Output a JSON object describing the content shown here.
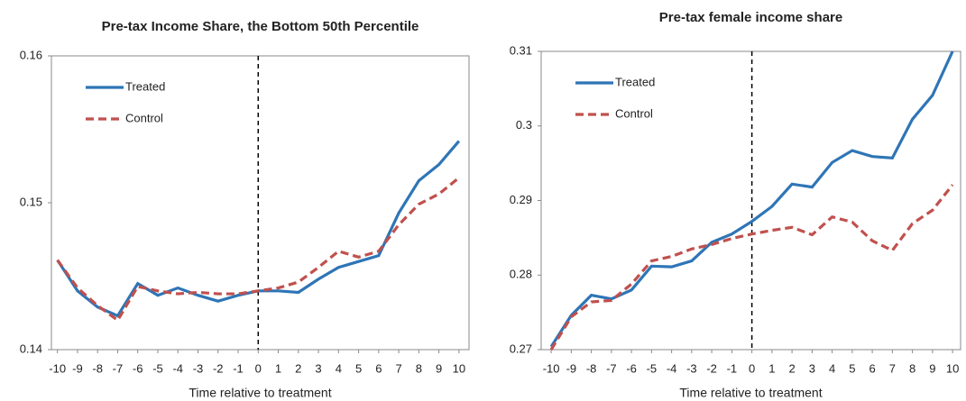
{
  "chart_data": [
    {
      "type": "line",
      "title": "Pre-tax Income Share, the Bottom 50th Percentile",
      "x_label": "Time relative to treatment",
      "x": [
        -10,
        -9,
        -8,
        -7,
        -6,
        -5,
        -4,
        -3,
        -2,
        -1,
        0,
        1,
        2,
        3,
        4,
        5,
        6,
        7,
        8,
        9,
        10
      ],
      "xlim": [
        -10.3,
        10.5
      ],
      "xticks": [
        -10,
        -9,
        -8,
        -7,
        -6,
        -5,
        -4,
        -3,
        -2,
        -1,
        0,
        1,
        2,
        3,
        4,
        5,
        6,
        7,
        8,
        9,
        10
      ],
      "ylim": [
        0.14,
        0.16
      ],
      "yticks": [
        0.14,
        0.15,
        0.16
      ],
      "vline": 0,
      "legend": "upper left",
      "series": [
        {
          "name": "Treated",
          "color": "#2e75b6",
          "values": [
            0.1461,
            0.144,
            0.1429,
            0.1423,
            0.1445,
            0.1437,
            0.1442,
            0.1437,
            0.1433,
            0.1437,
            0.144,
            0.144,
            0.1439,
            0.1448,
            0.1456,
            0.146,
            0.1464,
            0.1493,
            0.1515,
            0.1526,
            0.1542
          ]
        },
        {
          "name": "Control",
          "color": "#c0504d",
          "dashed": true,
          "values": [
            0.1461,
            0.1442,
            0.143,
            0.142,
            0.1443,
            0.144,
            0.1438,
            0.1439,
            0.1438,
            0.1438,
            0.144,
            0.1442,
            0.1446,
            0.1456,
            0.1467,
            0.1463,
            0.1467,
            0.1485,
            0.1499,
            0.1506,
            0.1517
          ]
        }
      ]
    },
    {
      "type": "line",
      "title": "Pre-tax female income share",
      "x_label": "Time relative to treatment",
      "x": [
        -10,
        -9,
        -8,
        -7,
        -6,
        -5,
        -4,
        -3,
        -2,
        -1,
        0,
        1,
        2,
        3,
        4,
        5,
        6,
        7,
        8,
        9,
        10
      ],
      "xlim": [
        -10.5,
        10.4
      ],
      "xticks": [
        -10,
        -9,
        -8,
        -7,
        -6,
        -5,
        -4,
        -3,
        -2,
        -1,
        0,
        1,
        2,
        3,
        4,
        5,
        6,
        7,
        8,
        9,
        10
      ],
      "ylim": [
        0.27,
        0.31
      ],
      "yticks": [
        0.27,
        0.28,
        0.29,
        0.3,
        0.31
      ],
      "vline": 0,
      "legend": "upper left",
      "series": [
        {
          "name": "Treated",
          "color": "#2e75b6",
          "values": [
            0.2704,
            0.2746,
            0.2773,
            0.2768,
            0.278,
            0.2812,
            0.2811,
            0.2819,
            0.2844,
            0.2855,
            0.2872,
            0.2892,
            0.2922,
            0.2918,
            0.2951,
            0.2967,
            0.2959,
            0.2957,
            0.3009,
            0.3041,
            0.31
          ]
        },
        {
          "name": "Control",
          "color": "#c0504d",
          "dashed": true,
          "values": [
            0.27,
            0.2744,
            0.2764,
            0.2766,
            0.2788,
            0.2819,
            0.2825,
            0.2835,
            0.2841,
            0.2849,
            0.2855,
            0.286,
            0.2864,
            0.2854,
            0.2878,
            0.2871,
            0.2846,
            0.2833,
            0.2869,
            0.2887,
            0.2921
          ]
        }
      ]
    }
  ]
}
